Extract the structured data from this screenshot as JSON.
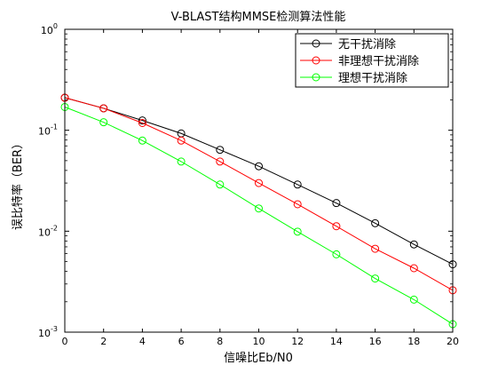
{
  "chart_data": {
    "type": "line",
    "title": "V-BLAST结构MMSE检测算法性能",
    "xlabel": "信噪比Eb/N0",
    "ylabel": "误比特率（BER）",
    "xlim": [
      0,
      20
    ],
    "ylim": [
      0.001,
      1
    ],
    "yscale": "log",
    "xticks": [
      0,
      2,
      4,
      6,
      8,
      10,
      12,
      14,
      16,
      18,
      20
    ],
    "yticks": [
      {
        "base": "10",
        "exp": "0",
        "value": 1
      },
      {
        "base": "10",
        "exp": "-1",
        "value": 0.1
      },
      {
        "base": "10",
        "exp": "-2",
        "value": 0.01
      },
      {
        "base": "10",
        "exp": "-3",
        "value": 0.001
      }
    ],
    "grid": false,
    "legend_position": "top-right",
    "marker": "circle",
    "x": [
      0,
      2,
      4,
      6,
      8,
      10,
      12,
      14,
      16,
      18,
      20
    ],
    "series": [
      {
        "name": "无干扰消除",
        "color": "#000000",
        "values": [
          0.21,
          0.165,
          0.125,
          0.093,
          0.064,
          0.044,
          0.029,
          0.019,
          0.012,
          0.0074,
          0.0047
        ]
      },
      {
        "name": "非理想干扰消除",
        "color": "#ff0000",
        "values": [
          0.21,
          0.165,
          0.118,
          0.079,
          0.049,
          0.03,
          0.0185,
          0.0112,
          0.0067,
          0.0043,
          0.0026
        ]
      },
      {
        "name": "理想干扰消除",
        "color": "#00ff00",
        "values": [
          0.17,
          0.12,
          0.079,
          0.049,
          0.029,
          0.0168,
          0.0099,
          0.0059,
          0.0034,
          0.0021,
          0.0012
        ]
      }
    ]
  }
}
